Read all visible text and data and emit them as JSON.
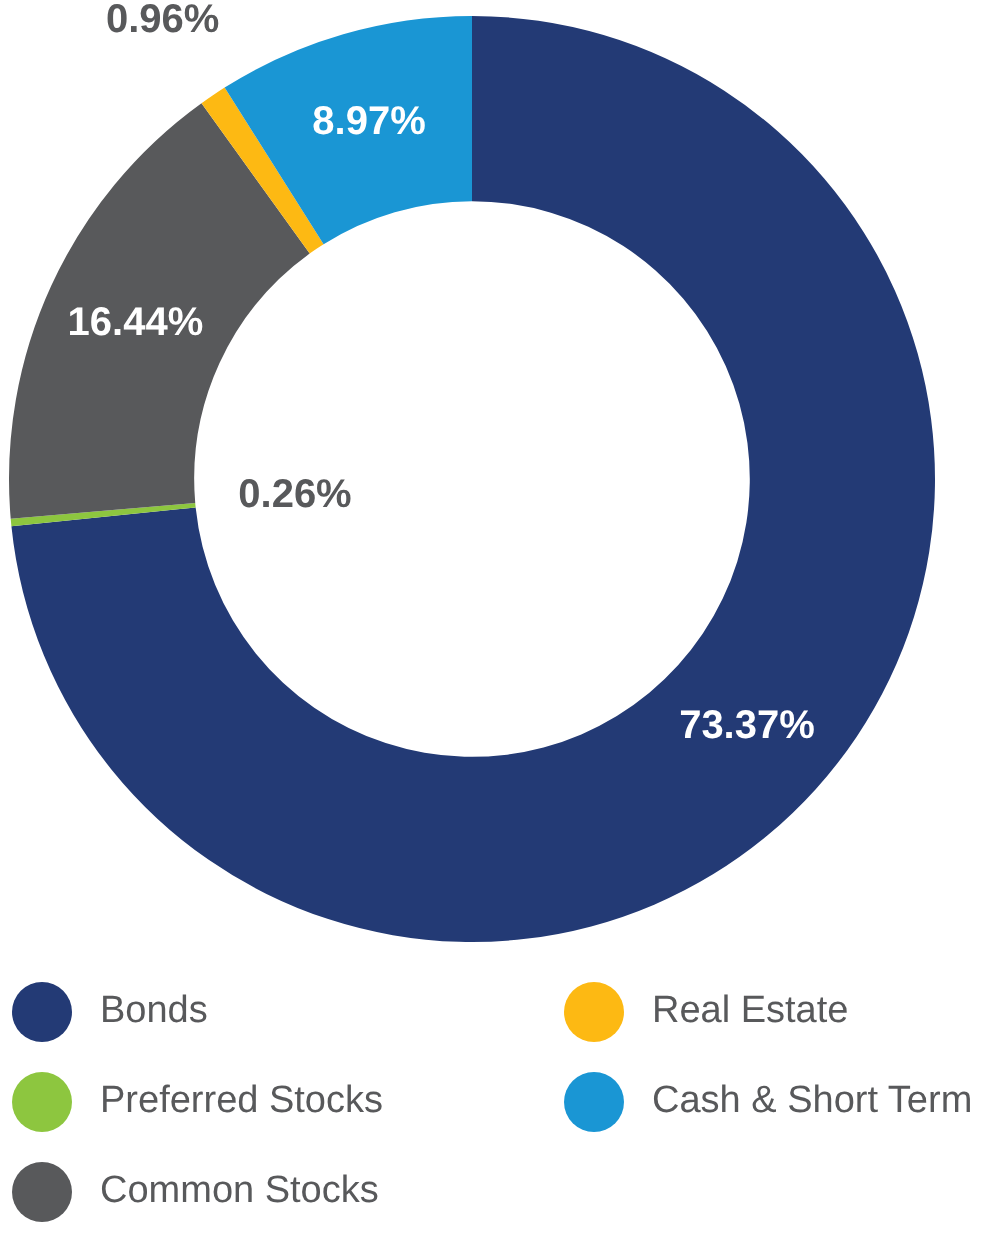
{
  "chart_data": {
    "type": "donut",
    "categories": [
      "Bonds",
      "Preferred Stocks",
      "Common Stocks",
      "Real Estate",
      "Cash & Short Term"
    ],
    "values": [
      73.37,
      0.26,
      16.44,
      0.96,
      8.97
    ],
    "colors": [
      "#233a75",
      "#8dc63f",
      "#58595b",
      "#fdb913",
      "#1a96d4"
    ],
    "value_labels": [
      "73.37%",
      "0.26%",
      "16.44%",
      "0.96%",
      "8.97%"
    ],
    "legend": "bottom"
  }
}
